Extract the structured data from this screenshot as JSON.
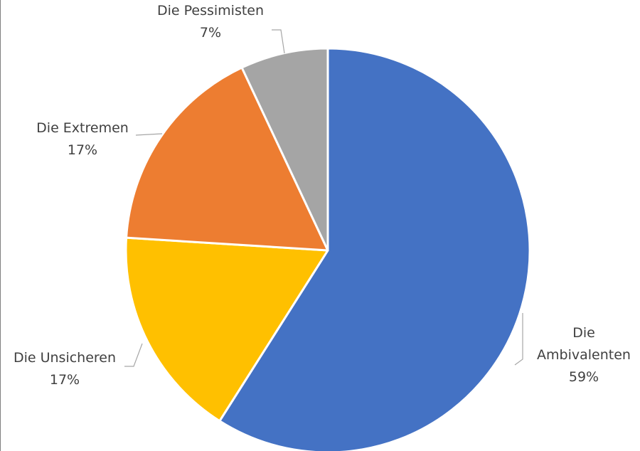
{
  "chart_data": {
    "type": "pie",
    "title": "",
    "slices": [
      {
        "name": "Die Ambivalenten",
        "label_lines": [
          "Die",
          "Ambivalenten"
        ],
        "value": 59,
        "value_label": "59%",
        "color": "#4472c4"
      },
      {
        "name": "Die Unsicheren",
        "label_lines": [
          "Die Unsicheren"
        ],
        "value": 17,
        "value_label": "17%",
        "color": "#ffc000"
      },
      {
        "name": "Die Extremen",
        "label_lines": [
          "Die Extremen"
        ],
        "value": 17,
        "value_label": "17%",
        "color": "#ed7d31"
      },
      {
        "name": "Die Pessimisten",
        "label_lines": [
          "Die Pessimisten"
        ],
        "value": 7,
        "value_label": "7%",
        "color": "#a5a5a5"
      }
    ],
    "start_angle": "12 o'clock",
    "direction": "clockwise",
    "legend": "none",
    "data_labels": "outside with leader lines"
  }
}
